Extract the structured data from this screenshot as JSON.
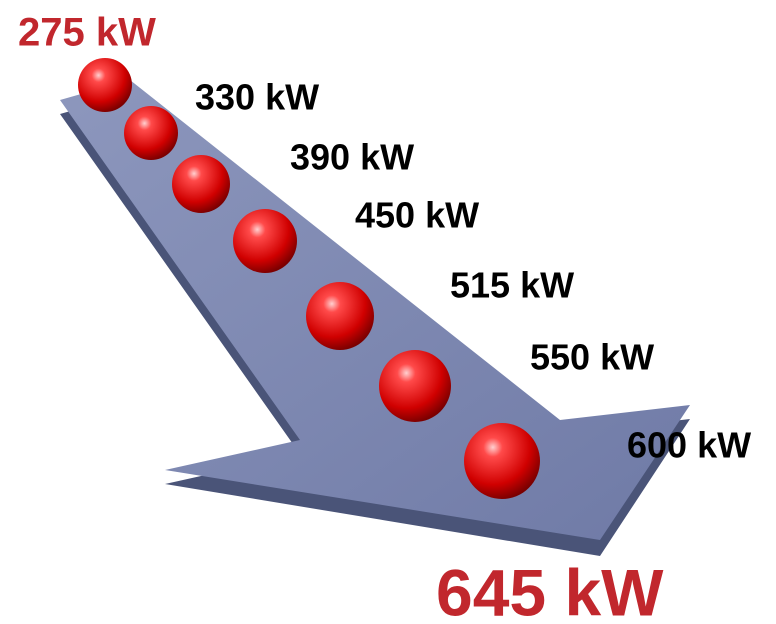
{
  "steps": [
    {
      "label": "275 kW"
    },
    {
      "label": "330 kW"
    },
    {
      "label": "390 kW"
    },
    {
      "label": "450 kW"
    },
    {
      "label": "515 kW"
    },
    {
      "label": "550 kW"
    },
    {
      "label": "600 kW"
    }
  ],
  "total": {
    "label": "645 kW"
  }
}
